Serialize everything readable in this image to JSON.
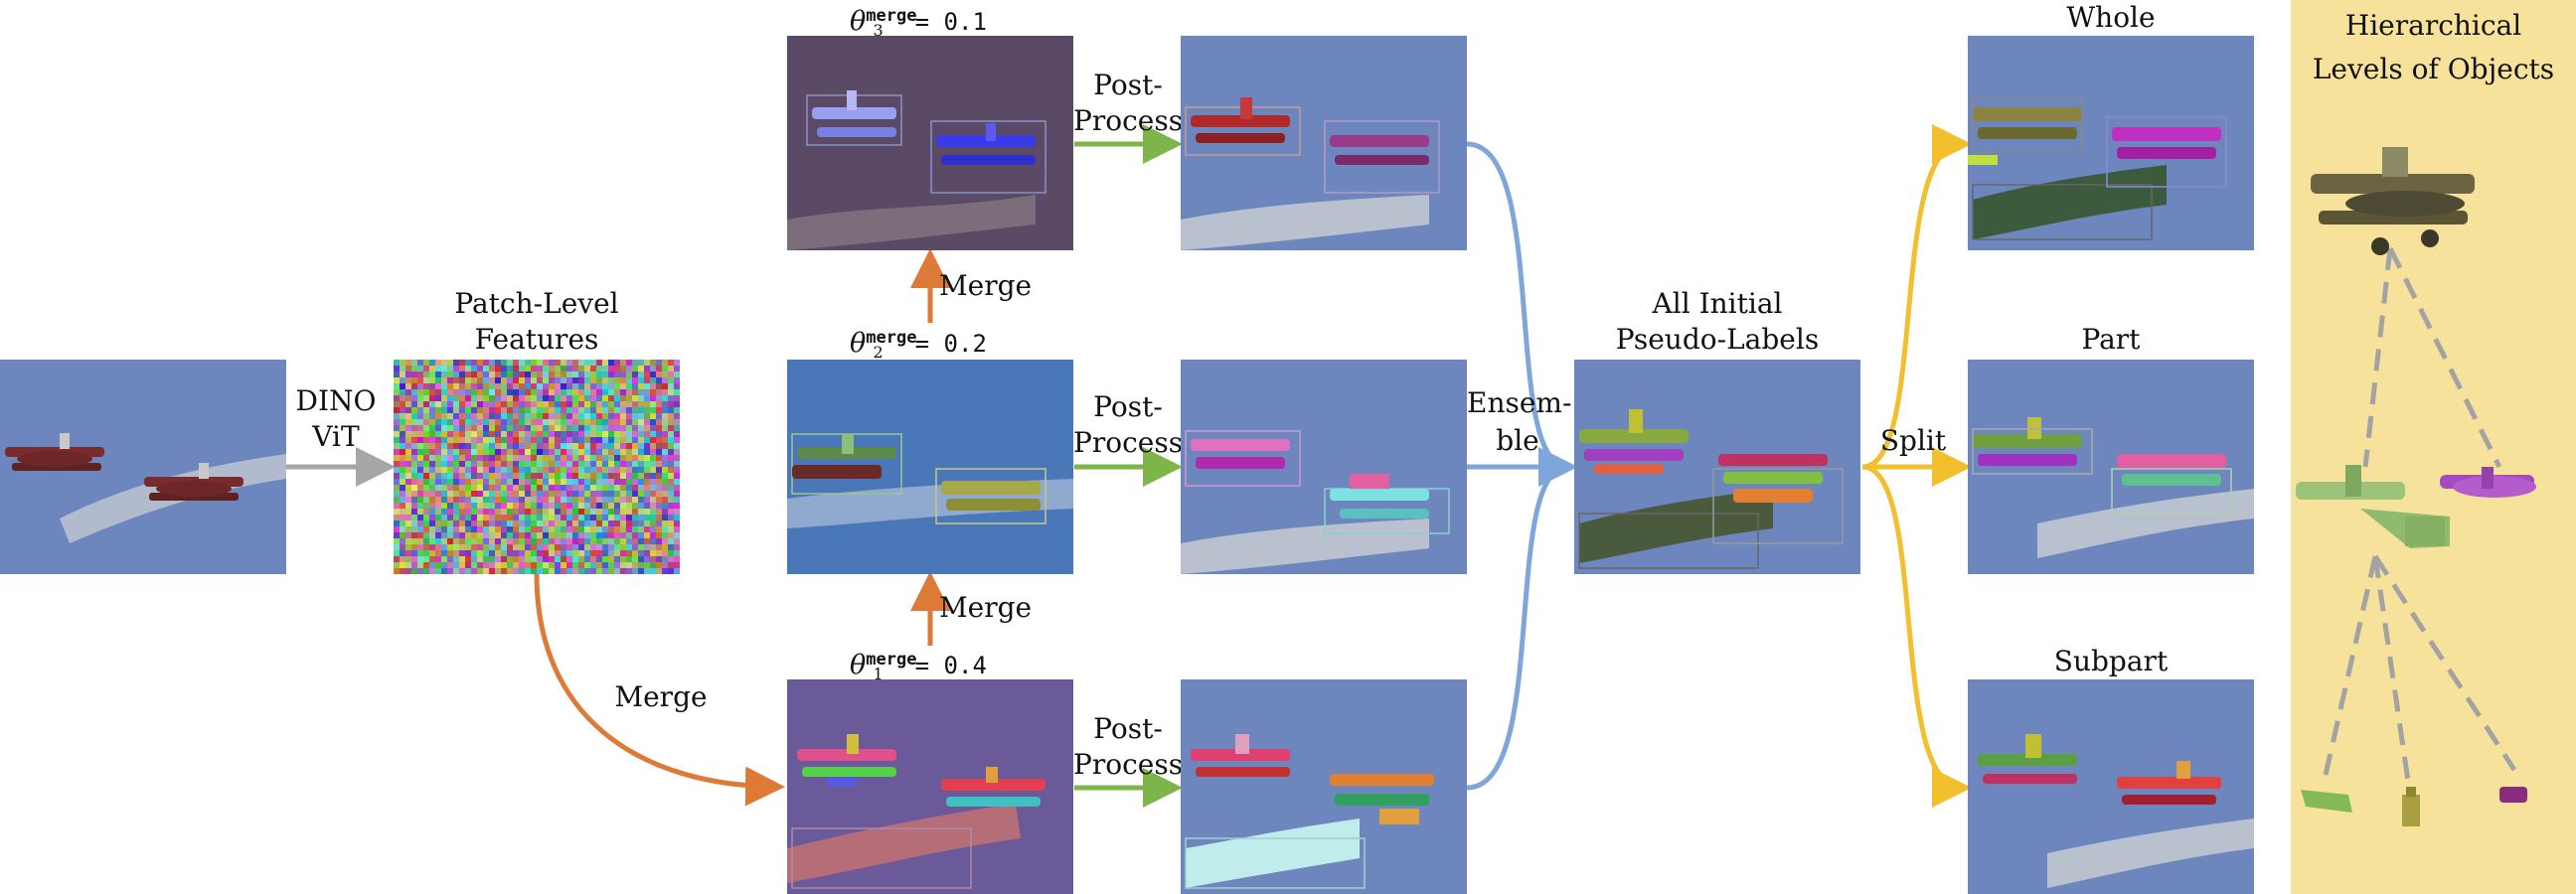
{
  "labels": {
    "dino": "DINO",
    "vit": "ViT",
    "patch_level": "Patch-Level",
    "features": "Features",
    "merge_main": "Merge",
    "merge_12": "Merge",
    "merge_23": "Merge",
    "theta_symbol": "θ",
    "theta_sup": "merge",
    "theta1_sub": "1",
    "theta2_sub": "2",
    "theta3_sub": "3",
    "theta1_val": "= 0.4",
    "theta2_val": "= 0.2",
    "theta3_val": "= 0.1",
    "post": "Post-",
    "process": "Process",
    "ensemble_a": "Ensem-",
    "ensemble_b": "ble",
    "all_initial": "All Initial",
    "pseudo_labels": "Pseudo-Labels",
    "split": "Split",
    "whole": "Whole",
    "part": "Part",
    "subpart": "Subpart",
    "hier_line1": "Hierarchical",
    "hier_line2": "Levels of Objects"
  },
  "colors": {
    "sky": "#6d86bd",
    "arrow_gray": "#a6a6a6",
    "arrow_orange": "#dd7a37",
    "arrow_green": "#7db54a",
    "arrow_blue": "#7fa6da",
    "arrow_yellow": "#f2bf2f",
    "yellow_panel": "#f7e29c",
    "dashed_gray": "#a3a3a3"
  }
}
